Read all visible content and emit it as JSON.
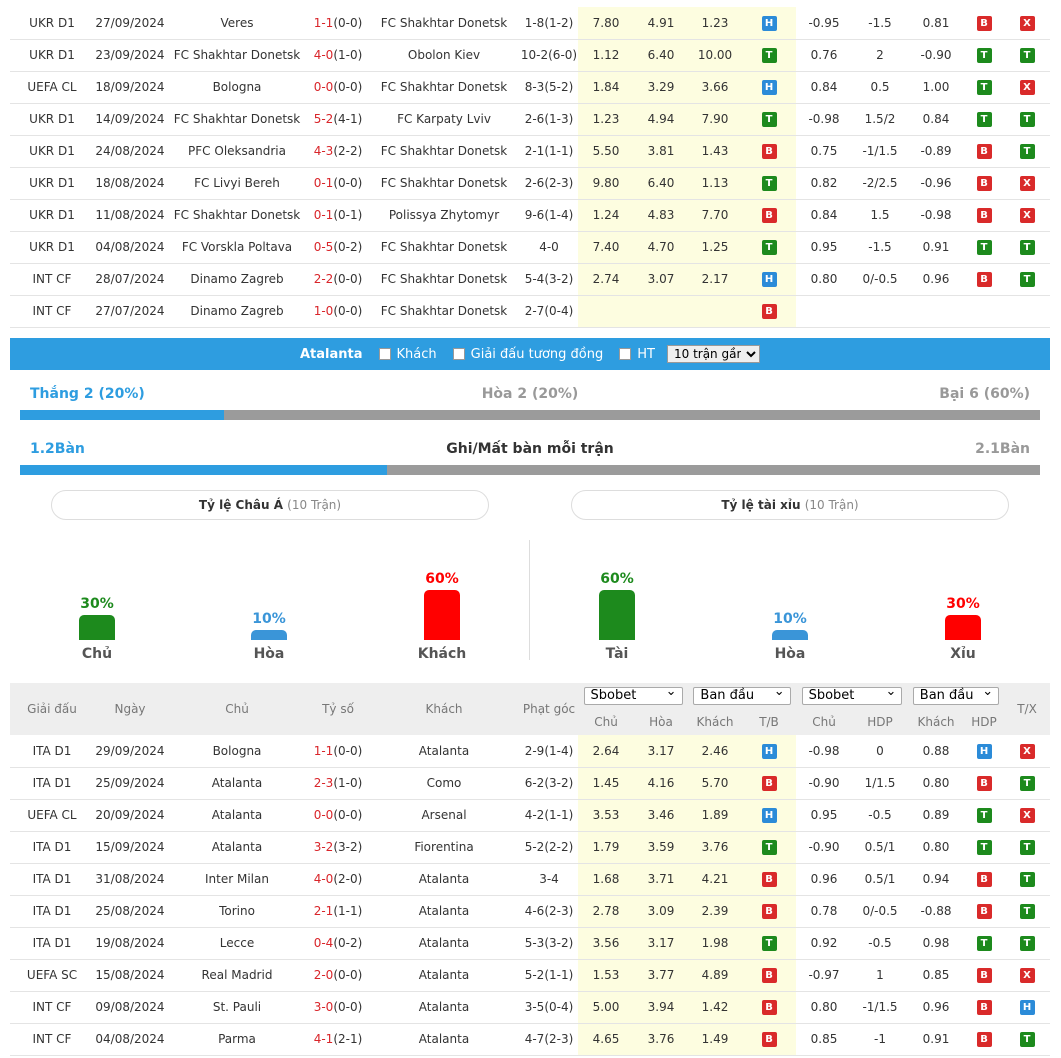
{
  "shakhtar_rows": [
    {
      "league": "UKR D1",
      "date": "27/09/2024",
      "home": "Veres",
      "home_hl": false,
      "score": "1-1",
      "ht": "(0-0)",
      "away": "FC Shakhtar Donetsk",
      "away_hl": true,
      "corner": "1-8(1-2)",
      "o1": "7.80",
      "o2": "4.91",
      "o3": "1.23",
      "tb": "H",
      "a1": "-0.95",
      "a2": "-1.5",
      "a3": "0.81",
      "ah": "B",
      "tx": "X"
    },
    {
      "league": "UKR D1",
      "date": "23/09/2024",
      "home": "FC Shakhtar Donetsk",
      "home_hl": true,
      "score": "4-0",
      "ht": "(1-0)",
      "away": "Obolon Kiev",
      "away_hl": false,
      "corner": "10-2(6-0)",
      "o1": "1.12",
      "o2": "6.40",
      "o3": "10.00",
      "tb": "T",
      "a1": "0.76",
      "a2": "2",
      "a3": "-0.90",
      "ah": "T",
      "tx": "T"
    },
    {
      "league": "UEFA CL",
      "date": "18/09/2024",
      "home": "Bologna",
      "home_hl": false,
      "score": "0-0",
      "ht": "(0-0)",
      "away": "FC Shakhtar Donetsk",
      "away_hl": true,
      "corner": "8-3(5-2)",
      "o1": "1.84",
      "o2": "3.29",
      "o3": "3.66",
      "tb": "H",
      "a1": "0.84",
      "a2": "0.5",
      "a3": "1.00",
      "ah": "T",
      "tx": "X"
    },
    {
      "league": "UKR D1",
      "date": "14/09/2024",
      "home": "FC Shakhtar Donetsk",
      "home_hl": true,
      "score": "5-2",
      "ht": "(4-1)",
      "away": "FC Karpaty Lviv",
      "away_hl": false,
      "corner": "2-6(1-3)",
      "o1": "1.23",
      "o2": "4.94",
      "o3": "7.90",
      "tb": "T",
      "a1": "-0.98",
      "a2": "1.5/2",
      "a3": "0.84",
      "ah": "T",
      "tx": "T"
    },
    {
      "league": "UKR D1",
      "date": "24/08/2024",
      "home": "PFC Oleksandria",
      "home_hl": false,
      "score": "4-3",
      "ht": "(2-2)",
      "away": "FC Shakhtar Donetsk",
      "away_hl": true,
      "corner": "2-1(1-1)",
      "o1": "5.50",
      "o2": "3.81",
      "o3": "1.43",
      "tb": "B",
      "a1": "0.75",
      "a2": "-1/1.5",
      "a3": "-0.89",
      "ah": "B",
      "tx": "T"
    },
    {
      "league": "UKR D1",
      "date": "18/08/2024",
      "home": "FC Livyi Bereh",
      "home_hl": false,
      "score": "0-1",
      "ht": "(0-0)",
      "away": "FC Shakhtar Donetsk",
      "away_hl": true,
      "corner": "2-6(2-3)",
      "o1": "9.80",
      "o2": "6.40",
      "o3": "1.13",
      "tb": "T",
      "a1": "0.82",
      "a2": "-2/2.5",
      "a3": "-0.96",
      "ah": "B",
      "tx": "X"
    },
    {
      "league": "UKR D1",
      "date": "11/08/2024",
      "home": "FC Shakhtar Donetsk",
      "home_hl": true,
      "score": "0-1",
      "ht": "(0-1)",
      "away": "Polissya Zhytomyr",
      "away_hl": false,
      "corner": "9-6(1-4)",
      "o1": "1.24",
      "o2": "4.83",
      "o3": "7.70",
      "tb": "B",
      "a1": "0.84",
      "a2": "1.5",
      "a3": "-0.98",
      "ah": "B",
      "tx": "X"
    },
    {
      "league": "UKR D1",
      "date": "04/08/2024",
      "home": "FC Vorskla Poltava",
      "home_hl": false,
      "score": "0-5",
      "ht": "(0-2)",
      "away": "FC Shakhtar Donetsk",
      "away_hl": true,
      "corner": "4-0",
      "o1": "7.40",
      "o2": "4.70",
      "o3": "1.25",
      "tb": "T",
      "a1": "0.95",
      "a2": "-1.5",
      "a3": "0.91",
      "ah": "T",
      "tx": "T"
    },
    {
      "league": "INT CF",
      "date": "28/07/2024",
      "home": "Dinamo Zagreb",
      "home_hl": false,
      "score": "2-2",
      "ht": "(0-0)",
      "away": "FC Shakhtar Donetsk",
      "away_hl": true,
      "corner": "5-4(3-2)",
      "o1": "2.74",
      "o2": "3.07",
      "o3": "2.17",
      "tb": "H",
      "a1": "0.80",
      "a2": "0/-0.5",
      "a3": "0.96",
      "ah": "B",
      "tx": "T"
    },
    {
      "league": "INT CF",
      "date": "27/07/2024",
      "home": "Dinamo Zagreb",
      "home_hl": false,
      "score": "1-0",
      "ht": "(0-0)",
      "away": "FC Shakhtar Donetsk",
      "away_hl": true,
      "corner": "2-7(0-4)",
      "o1": "",
      "o2": "",
      "o3": "",
      "tb": "B",
      "a1": "",
      "a2": "",
      "a3": "",
      "ah": "",
      "tx": ""
    }
  ],
  "filter_bar": {
    "team": "Atalanta",
    "opt_away": "Khách",
    "opt_same_league": "Giải đấu tương đồng",
    "opt_ht": "HT",
    "recent_select": "10 trận gần"
  },
  "summary": {
    "win_label": "Thắng 2 (20%)",
    "draw_label": "Hòa 2 (20%)",
    "loss_label": "Bại 6 (60%)",
    "win_fraction": 0.2,
    "goals_for": "1.2Bàn",
    "goals_title": "Ghi/Mất bàn mỗi trận",
    "goals_against": "2.1Bàn",
    "goals_fraction": 0.36
  },
  "asian": {
    "title": "Tỷ lệ Châu Á",
    "sub": "(10 Trận)",
    "bars": [
      {
        "pct": "30%",
        "label": "Chủ",
        "value": 30,
        "color": "#1d8a1d"
      },
      {
        "pct": "10%",
        "label": "Hòa",
        "value": 10,
        "color": "#3a95d8"
      },
      {
        "pct": "60%",
        "label": "Khách",
        "value": 60,
        "color": "#ff0000"
      }
    ]
  },
  "overunder": {
    "title": "Tỷ lệ tài xỉu",
    "sub": "(10 Trận)",
    "bars": [
      {
        "pct": "60%",
        "label": "Tài",
        "value": 60,
        "color": "#1d8a1d"
      },
      {
        "pct": "10%",
        "label": "Hòa",
        "value": 10,
        "color": "#3a95d8"
      },
      {
        "pct": "30%",
        "label": "Xỉu",
        "value": 30,
        "color": "#ff0000"
      }
    ]
  },
  "table_head": {
    "league": "Giải đấu",
    "date": "Ngày",
    "home": "Chủ",
    "score": "Tỷ số",
    "away": "Khách",
    "corner": "Phạt góc",
    "book1": "Sbobet",
    "type1": "Ban đầu",
    "book2": "Sbobet",
    "type2": "Ban đầu",
    "o_home": "Chủ",
    "o_draw": "Hòa",
    "o_away": "Khách",
    "tb": "T/B",
    "a_home": "Chủ",
    "a_hdp": "HDP",
    "a_away": "Khách",
    "a_res": "HDP",
    "tx": "T/X"
  },
  "atalanta_rows": [
    {
      "league": "ITA D1",
      "date": "29/09/2024",
      "home": "Bologna",
      "home_hl": false,
      "score": "1-1",
      "ht": "(0-0)",
      "away": "Atalanta",
      "away_hl": true,
      "corner": "2-9(1-4)",
      "o1": "2.64",
      "o2": "3.17",
      "o3": "2.46",
      "tb": "H",
      "a1": "-0.98",
      "a2": "0",
      "a3": "0.88",
      "ah": "H",
      "tx": "X"
    },
    {
      "league": "ITA D1",
      "date": "25/09/2024",
      "home": "Atalanta",
      "home_hl": true,
      "score": "2-3",
      "ht": "(1-0)",
      "away": "Como",
      "away_hl": false,
      "corner": "6-2(3-2)",
      "o1": "1.45",
      "o2": "4.16",
      "o3": "5.70",
      "tb": "B",
      "a1": "-0.90",
      "a2": "1/1.5",
      "a3": "0.80",
      "ah": "B",
      "tx": "T"
    },
    {
      "league": "UEFA CL",
      "date": "20/09/2024",
      "home": "Atalanta",
      "home_hl": true,
      "score": "0-0",
      "ht": "(0-0)",
      "away": "Arsenal",
      "away_hl": false,
      "corner": "4-2(1-1)",
      "o1": "3.53",
      "o2": "3.46",
      "o3": "1.89",
      "tb": "H",
      "a1": "0.95",
      "a2": "-0.5",
      "a3": "0.89",
      "ah": "T",
      "tx": "X"
    },
    {
      "league": "ITA D1",
      "date": "15/09/2024",
      "home": "Atalanta",
      "home_hl": true,
      "score": "3-2",
      "ht": "(3-2)",
      "away": "Fiorentina",
      "away_hl": false,
      "corner": "5-2(2-2)",
      "o1": "1.79",
      "o2": "3.59",
      "o3": "3.76",
      "tb": "T",
      "a1": "-0.90",
      "a2": "0.5/1",
      "a3": "0.80",
      "ah": "T",
      "tx": "T"
    },
    {
      "league": "ITA D1",
      "date": "31/08/2024",
      "home": "Inter Milan",
      "home_hl": false,
      "score": "4-0",
      "ht": "(2-0)",
      "away": "Atalanta",
      "away_hl": true,
      "corner": "3-4",
      "o1": "1.68",
      "o2": "3.71",
      "o3": "4.21",
      "tb": "B",
      "a1": "0.96",
      "a2": "0.5/1",
      "a3": "0.94",
      "ah": "B",
      "tx": "T"
    },
    {
      "league": "ITA D1",
      "date": "25/08/2024",
      "home": "Torino",
      "home_hl": false,
      "score": "2-1",
      "ht": "(1-1)",
      "away": "Atalanta",
      "away_hl": true,
      "corner": "4-6(2-3)",
      "o1": "2.78",
      "o2": "3.09",
      "o3": "2.39",
      "tb": "B",
      "a1": "0.78",
      "a2": "0/-0.5",
      "a3": "-0.88",
      "ah": "B",
      "tx": "T"
    },
    {
      "league": "ITA D1",
      "date": "19/08/2024",
      "home": "Lecce",
      "home_hl": false,
      "score": "0-4",
      "ht": "(0-2)",
      "away": "Atalanta",
      "away_hl": true,
      "corner": "5-3(3-2)",
      "o1": "3.56",
      "o2": "3.17",
      "o3": "1.98",
      "tb": "T",
      "a1": "0.92",
      "a2": "-0.5",
      "a3": "0.98",
      "ah": "T",
      "tx": "T"
    },
    {
      "league": "UEFA SC",
      "date": "15/08/2024",
      "home": "Real Madrid",
      "home_hl": false,
      "score": "2-0",
      "ht": "(0-0)",
      "away": "Atalanta",
      "away_hl": true,
      "corner": "5-2(1-1)",
      "o1": "1.53",
      "o2": "3.77",
      "o3": "4.89",
      "tb": "B",
      "a1": "-0.97",
      "a2": "1",
      "a3": "0.85",
      "ah": "B",
      "tx": "X"
    },
    {
      "league": "INT CF",
      "date": "09/08/2024",
      "home": "St. Pauli",
      "home_hl": false,
      "score": "3-0",
      "ht": "(0-0)",
      "away": "Atalanta",
      "away_hl": true,
      "corner": "3-5(0-4)",
      "o1": "5.00",
      "o2": "3.94",
      "o3": "1.42",
      "tb": "B",
      "a1": "0.80",
      "a2": "-1/1.5",
      "a3": "0.96",
      "ah": "B",
      "tx": "H"
    },
    {
      "league": "INT CF",
      "date": "04/08/2024",
      "home": "Parma",
      "home_hl": false,
      "score": "4-1",
      "ht": "(2-1)",
      "away": "Atalanta",
      "away_hl": true,
      "corner": "4-7(2-3)",
      "o1": "4.65",
      "o2": "3.76",
      "o3": "1.49",
      "tb": "B",
      "a1": "0.85",
      "a2": "-1",
      "a3": "0.91",
      "ah": "B",
      "tx": "T"
    }
  ]
}
